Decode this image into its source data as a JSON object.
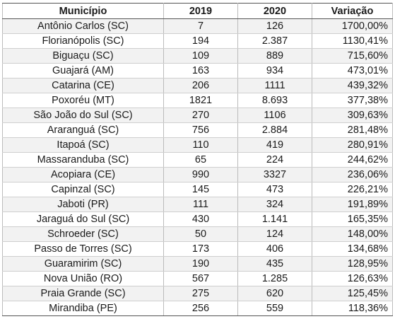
{
  "table": {
    "headers": {
      "municipio": "Município",
      "y2019": "2019",
      "y2020": "2020",
      "variacao": "Variação"
    },
    "rows": [
      {
        "municipio": "Antônio Carlos (SC)",
        "y2019": "7",
        "y2020": "126",
        "variacao": "1700,00%"
      },
      {
        "municipio": "Florianópolis (SC)",
        "y2019": "194",
        "y2020": "2.387",
        "variacao": "1130,41%"
      },
      {
        "municipio": "Biguaçu (SC)",
        "y2019": "109",
        "y2020": "889",
        "variacao": "715,60%"
      },
      {
        "municipio": "Guajará (AM)",
        "y2019": "163",
        "y2020": "934",
        "variacao": "473,01%"
      },
      {
        "municipio": "Catarina (CE)",
        "y2019": "206",
        "y2020": "1111",
        "variacao": "439,32%"
      },
      {
        "municipio": "Poxoréu (MT)",
        "y2019": "1821",
        "y2020": "8.693",
        "variacao": "377,38%"
      },
      {
        "municipio": "São João do Sul (SC)",
        "y2019": "270",
        "y2020": "1106",
        "variacao": "309,63%"
      },
      {
        "municipio": "Araranguá (SC)",
        "y2019": "756",
        "y2020": "2.884",
        "variacao": "281,48%"
      },
      {
        "municipio": "Itapoá (SC)",
        "y2019": "110",
        "y2020": "419",
        "variacao": "280,91%"
      },
      {
        "municipio": "Massaranduba (SC)",
        "y2019": "65",
        "y2020": "224",
        "variacao": "244,62%"
      },
      {
        "municipio": "Acopiara (CE)",
        "y2019": "990",
        "y2020": "3327",
        "variacao": "236,06%"
      },
      {
        "municipio": "Capinzal (SC)",
        "y2019": "145",
        "y2020": "473",
        "variacao": "226,21%"
      },
      {
        "municipio": "Jaboti (PR)",
        "y2019": "111",
        "y2020": "324",
        "variacao": "191,89%"
      },
      {
        "municipio": "Jaraguá do Sul (SC)",
        "y2019": "430",
        "y2020": "1.141",
        "variacao": "165,35%"
      },
      {
        "municipio": "Schroeder (SC)",
        "y2019": "50",
        "y2020": "124",
        "variacao": "148,00%"
      },
      {
        "municipio": "Passo de Torres (SC)",
        "y2019": "173",
        "y2020": "406",
        "variacao": "134,68%"
      },
      {
        "municipio": "Guaramirim (SC)",
        "y2019": "190",
        "y2020": "435",
        "variacao": "128,95%"
      },
      {
        "municipio": "Nova União (RO)",
        "y2019": "567",
        "y2020": "1.285",
        "variacao": "126,63%"
      },
      {
        "municipio": "Praia Grande (SC)",
        "y2019": "275",
        "y2020": "620",
        "variacao": "125,45%"
      },
      {
        "municipio": "Mirandiba (PE)",
        "y2019": "256",
        "y2020": "559",
        "variacao": "118,36%"
      }
    ]
  }
}
